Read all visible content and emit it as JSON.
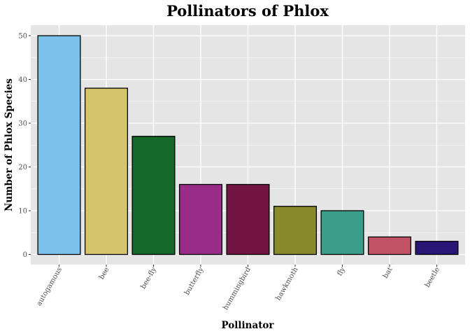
{
  "chart_data": {
    "type": "bar",
    "title": "Pollinators of Phlox",
    "xlabel": "Pollinator",
    "ylabel": "Number of Phlox Species",
    "categories": [
      "autogamous",
      "bee",
      "bee-fly",
      "butterfly",
      "hummingbird",
      "hawkmoth",
      "fly",
      "bat",
      "beetle"
    ],
    "values": [
      50,
      38,
      27,
      16,
      16,
      11,
      10,
      4,
      3
    ],
    "colors": [
      "#7AC2EB",
      "#D6C46A",
      "#15682A",
      "#992C88",
      "#731542",
      "#888A2C",
      "#3A9E8A",
      "#C25366",
      "#281676"
    ],
    "ylim": [
      0,
      52
    ],
    "yticks": [
      0,
      10,
      20,
      30,
      40,
      50
    ],
    "grid": true,
    "legend": "none",
    "panel_color": "#E5E5E5",
    "grid_color": "#FFFFFF",
    "bar_outline_color": "#000000"
  }
}
